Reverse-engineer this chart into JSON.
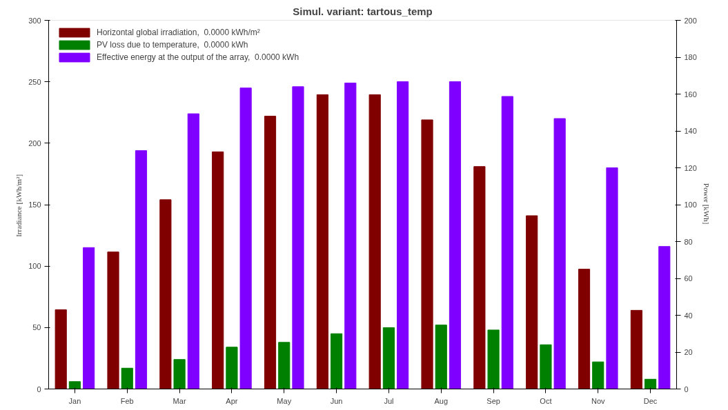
{
  "chart_data": {
    "type": "bar",
    "title": "Simul. variant: tartous_temp",
    "ylabel": "Irradiance  [kWh/m²]",
    "y2label": "Power  [kWh]",
    "categories": [
      "Jan",
      "Feb",
      "Mar",
      "Apr",
      "May",
      "Jun",
      "Jul",
      "Aug",
      "Sep",
      "Oct",
      "Nov",
      "Dec"
    ],
    "series": [
      {
        "name": "Horizontal global irradiation,  0.0000 kWh/m²",
        "color": "#800000",
        "values": [
          64.5,
          111.5,
          154,
          193,
          222,
          239.5,
          239.5,
          219,
          181,
          141,
          97.5,
          64
        ]
      },
      {
        "name": "PV loss due to temperature,  0.0000 kWh",
        "color": "#008000",
        "axis": "y2",
        "values": [
          4,
          11.3,
          16,
          22.7,
          25.3,
          30,
          33.3,
          34.7,
          32,
          24,
          14.7,
          5.3
        ]
      },
      {
        "name": "Effective energy at the output of the array,  0.0000 kWh",
        "color": "#8000ff",
        "axis": "y2",
        "values": [
          76.7,
          129.3,
          149.3,
          163.3,
          164,
          166,
          166.7,
          166.7,
          158.7,
          146.7,
          120,
          77.3
        ]
      }
    ],
    "ylim": [
      0,
      300
    ],
    "yticks": [
      0,
      50,
      100,
      150,
      200,
      250,
      300
    ],
    "y2lim": [
      0,
      200
    ],
    "y2ticks": [
      0,
      20,
      40,
      60,
      80,
      100,
      120,
      140,
      160,
      180,
      200
    ],
    "grid": false,
    "legend": "top left"
  }
}
